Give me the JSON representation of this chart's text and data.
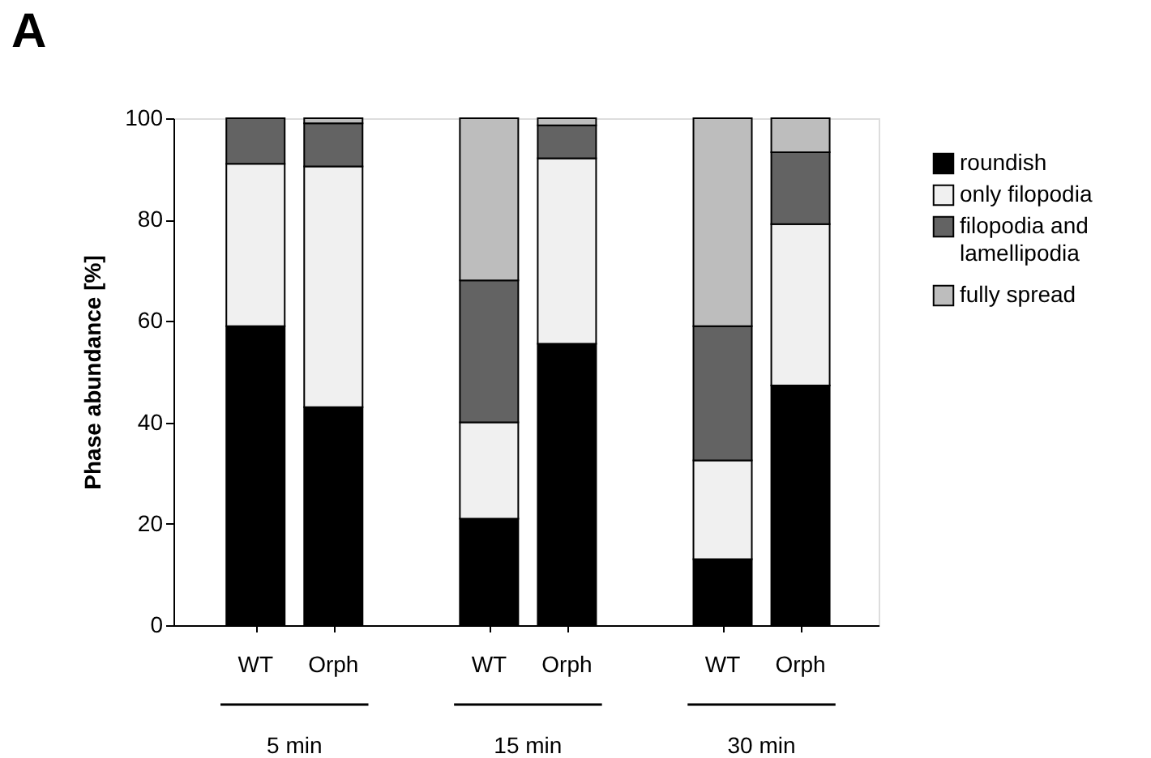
{
  "chart_data": {
    "type": "bar",
    "stacked": true,
    "title": "A",
    "ylabel": "Phase abundance [%]",
    "categories": [
      "WT",
      "Orph",
      "WT",
      "Orph",
      "WT",
      "Orph"
    ],
    "annotations": [
      "5 min",
      "15 min",
      "30 min"
    ],
    "series": [
      {
        "name": "roundish",
        "color": "#000000",
        "values": [
          59,
          43,
          21,
          55.5,
          13,
          47.3
        ]
      },
      {
        "name": "only filopodia",
        "color": "#f0f0f0",
        "values": [
          32,
          47.5,
          19,
          36.6,
          19.5,
          31.8
        ]
      },
      {
        "name": "filopodia and lamellipodia",
        "color": "#636363",
        "values": [
          9,
          8.5,
          28,
          6.5,
          26.5,
          14.2
        ]
      },
      {
        "name": "fully spread",
        "color": "#bdbdbd",
        "values": [
          null,
          1,
          32,
          1.4,
          41,
          6.7
        ]
      }
    ],
    "ylim": [
      0,
      100
    ],
    "yticks": [
      0,
      20,
      40,
      60,
      80,
      100
    ],
    "grid": false,
    "legend": "right"
  }
}
